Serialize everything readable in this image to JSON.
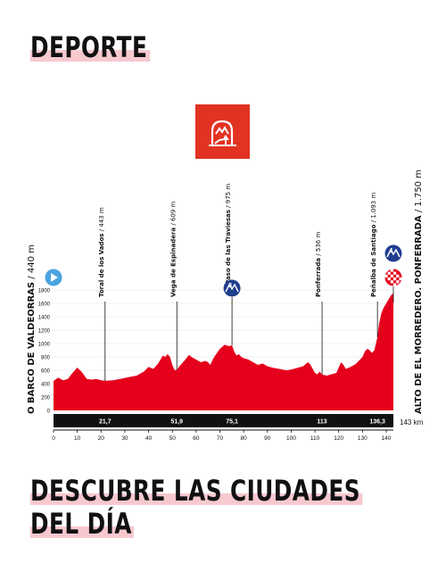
{
  "section": {
    "title": "DEPORTE"
  },
  "promo": {
    "title_line1": "DESCUBRE LAS CIUDADES",
    "title_line2": "DEL DÍA"
  },
  "stage_icon": {
    "name": "mountain-finish-icon",
    "color": "#e23222"
  },
  "colors": {
    "profile": "#e5001c",
    "marker_blue": "#1f3e8f",
    "start_blue": "#4aa3df",
    "bar": "#111111"
  },
  "chart_data": {
    "type": "area",
    "title": "",
    "xlabel": "",
    "ylabel": "",
    "xlim": [
      0,
      143
    ],
    "ylim": [
      0,
      1800
    ],
    "x_ticks": [
      0,
      10,
      20,
      30,
      40,
      50,
      60,
      70,
      80,
      90,
      100,
      110,
      120,
      130,
      140
    ],
    "y_ticks": [
      0,
      200,
      400,
      600,
      800,
      1000,
      1200,
      1400,
      1600,
      1800
    ],
    "total_distance_label": "143 km",
    "start": {
      "name": "O BARCO DE VALDEORRAS",
      "altitude": "440 m",
      "km": 0
    },
    "finish": {
      "name": "ALTO DE EL MORREDERO. PONFERRADA",
      "altitude": "1.750 m",
      "km": 143
    },
    "waypoints": [
      {
        "name": "Toral de los Vados",
        "altitude": "443 m",
        "km": 21.7,
        "km_label": "21,7",
        "category": ""
      },
      {
        "name": "Vega de Espinadera",
        "altitude": "609 m",
        "km": 51.9,
        "km_label": "51,9",
        "category": ""
      },
      {
        "name": "Paso de las Traviesas",
        "altitude": "975 m",
        "km": 75.1,
        "km_label": "75,1",
        "category": "3"
      },
      {
        "name": "Ponferrada",
        "altitude": "536 m",
        "km": 113,
        "km_label": "113",
        "category": ""
      },
      {
        "name": "Peñalba de Santiago",
        "altitude": "1.093 m",
        "km": 136.3,
        "km_label": "136,3",
        "category": ""
      }
    ],
    "finish_category": "1",
    "x": [
      0,
      2,
      4,
      6,
      8,
      10,
      12,
      14,
      16,
      18,
      20,
      22,
      25,
      28,
      32,
      35,
      38,
      40,
      42,
      44,
      45,
      46,
      47,
      48,
      49,
      50,
      51,
      51.9,
      53,
      55,
      57,
      58,
      59,
      60,
      62,
      64,
      65,
      66,
      67,
      68,
      70,
      72,
      74,
      75.1,
      76,
      77,
      78,
      79,
      80,
      82,
      84,
      86,
      88,
      90,
      92,
      95,
      98,
      100,
      102,
      105,
      107,
      108,
      110,
      111,
      112,
      113,
      115,
      117,
      119,
      120,
      121,
      122,
      123,
      125,
      127,
      129,
      130,
      131,
      132,
      133,
      134,
      135,
      136.3,
      137,
      138,
      139,
      140,
      141,
      142,
      143
    ],
    "y": [
      440,
      490,
      450,
      470,
      560,
      640,
      570,
      470,
      460,
      470,
      450,
      443,
      450,
      470,
      500,
      520,
      580,
      650,
      620,
      700,
      760,
      820,
      800,
      840,
      800,
      680,
      600,
      609,
      660,
      740,
      830,
      800,
      780,
      760,
      720,
      740,
      720,
      680,
      760,
      820,
      920,
      980,
      960,
      975,
      880,
      820,
      840,
      800,
      780,
      760,
      720,
      680,
      700,
      660,
      640,
      620,
      600,
      610,
      630,
      660,
      720,
      690,
      560,
      540,
      580,
      536,
      520,
      540,
      560,
      640,
      720,
      680,
      620,
      650,
      690,
      760,
      800,
      880,
      920,
      900,
      860,
      900,
      1093,
      1300,
      1460,
      1540,
      1600,
      1660,
      1720,
      1750
    ]
  }
}
